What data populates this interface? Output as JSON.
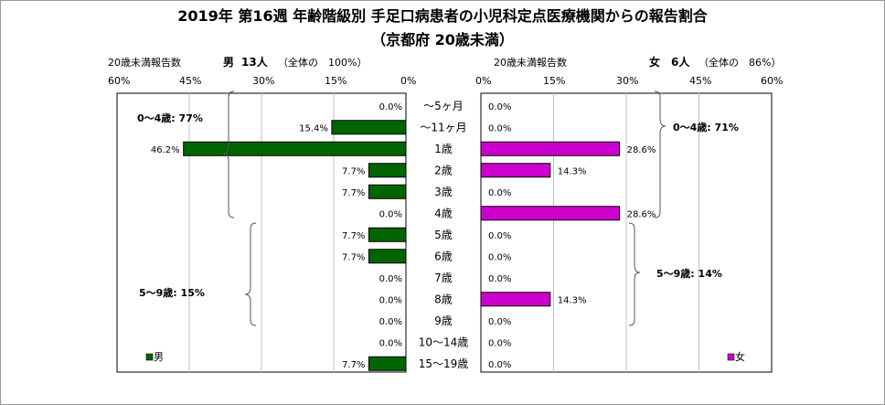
{
  "title": "2019年 第16週 年齢階級別 手足口病患者の小児科定点医療機関からの報告割合",
  "subtitle": "（京都府 20歳未満）",
  "left_header": {
    "caption": "20歳未満報告数",
    "sex": "男",
    "count": "13人",
    "share": "（全体の　100%）"
  },
  "right_header": {
    "caption": "20歳未満報告数",
    "sex": "女",
    "count": "6人",
    "share": "（全体の　86%）"
  },
  "left_ticks": [
    "60%",
    "45%",
    "30%",
    "15%",
    "0%"
  ],
  "right_ticks": [
    "0%",
    "15%",
    "30%",
    "45%",
    "60%"
  ],
  "groups": {
    "male_0_4": "0～4歳: 77%",
    "male_5_9": "5～9歳: 15%",
    "female_0_4": "0～4歳: 71%",
    "female_5_9": "5～9歳: 14%"
  },
  "colors": {
    "male": "#006400",
    "female": "#cc00cc",
    "grid": "#c0c0c0",
    "frame": "#9a9a9a"
  },
  "chart_data": {
    "type": "bar",
    "orientation": "horizontal",
    "categories": [
      "～5ヶ月",
      "～11ヶ月",
      "1歳",
      "2歳",
      "3歳",
      "4歳",
      "5歳",
      "6歳",
      "7歳",
      "8歳",
      "9歳",
      "10～14歳",
      "15～19歳"
    ],
    "xlim": [
      0,
      60
    ],
    "series": [
      {
        "name": "男",
        "values": [
          0.0,
          15.4,
          46.2,
          7.7,
          7.7,
          0.0,
          7.7,
          7.7,
          0.0,
          0.0,
          0.0,
          0.0,
          7.7
        ],
        "labels": [
          "0.0%",
          "15.4%",
          "46.2%",
          "7.7%",
          "7.7%",
          "0.0%",
          "7.7%",
          "7.7%",
          "0.0%",
          "0.0%",
          "0.0%",
          "0.0%",
          "7.7%"
        ]
      },
      {
        "name": "女",
        "values": [
          0.0,
          0.0,
          28.6,
          14.3,
          0.0,
          28.6,
          0.0,
          0.0,
          0.0,
          14.3,
          0.0,
          0.0,
          0.0
        ],
        "labels": [
          "0.0%",
          "0.0%",
          "28.6%",
          "14.3%",
          "0.0%",
          "28.6%",
          "0.0%",
          "0.0%",
          "0.0%",
          "14.3%",
          "0.0%",
          "0.0%",
          "0.0%"
        ]
      }
    ],
    "grid": true,
    "legend": "bottom-left (男), bottom-right (女)"
  }
}
